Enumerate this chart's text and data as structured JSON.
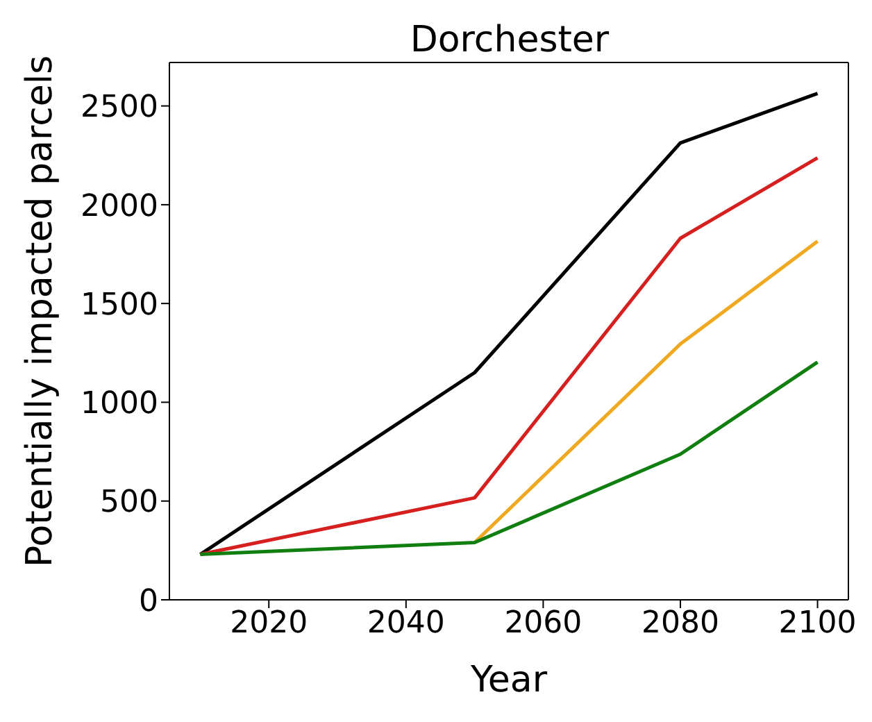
{
  "chart_data": {
    "type": "line",
    "title": "Dorchester",
    "xlabel": "Year",
    "ylabel": "Potentially impacted parcels",
    "x": [
      2010,
      2050,
      2080,
      2100
    ],
    "series": [
      {
        "color": "#000000",
        "values": [
          230,
          1150,
          2313,
          2563
        ]
      },
      {
        "color": "#d62020",
        "values": [
          230,
          516,
          1830,
          2237
        ]
      },
      {
        "color": "#f0a820",
        "values": [
          null,
          290,
          1295,
          1815
        ]
      },
      {
        "color": "#107f10",
        "values": [
          230,
          290,
          737,
          1203
        ]
      }
    ],
    "xlim": [
      2005.5,
      2104.5
    ],
    "xticks": [
      2020,
      2040,
      2060,
      2080,
      2100
    ],
    "ylim": [
      0,
      2720
    ],
    "yticks": [
      0,
      500,
      1000,
      1500,
      2000,
      2500
    ],
    "grid": false,
    "legend": false,
    "marker": "none",
    "line_style": "solid"
  }
}
